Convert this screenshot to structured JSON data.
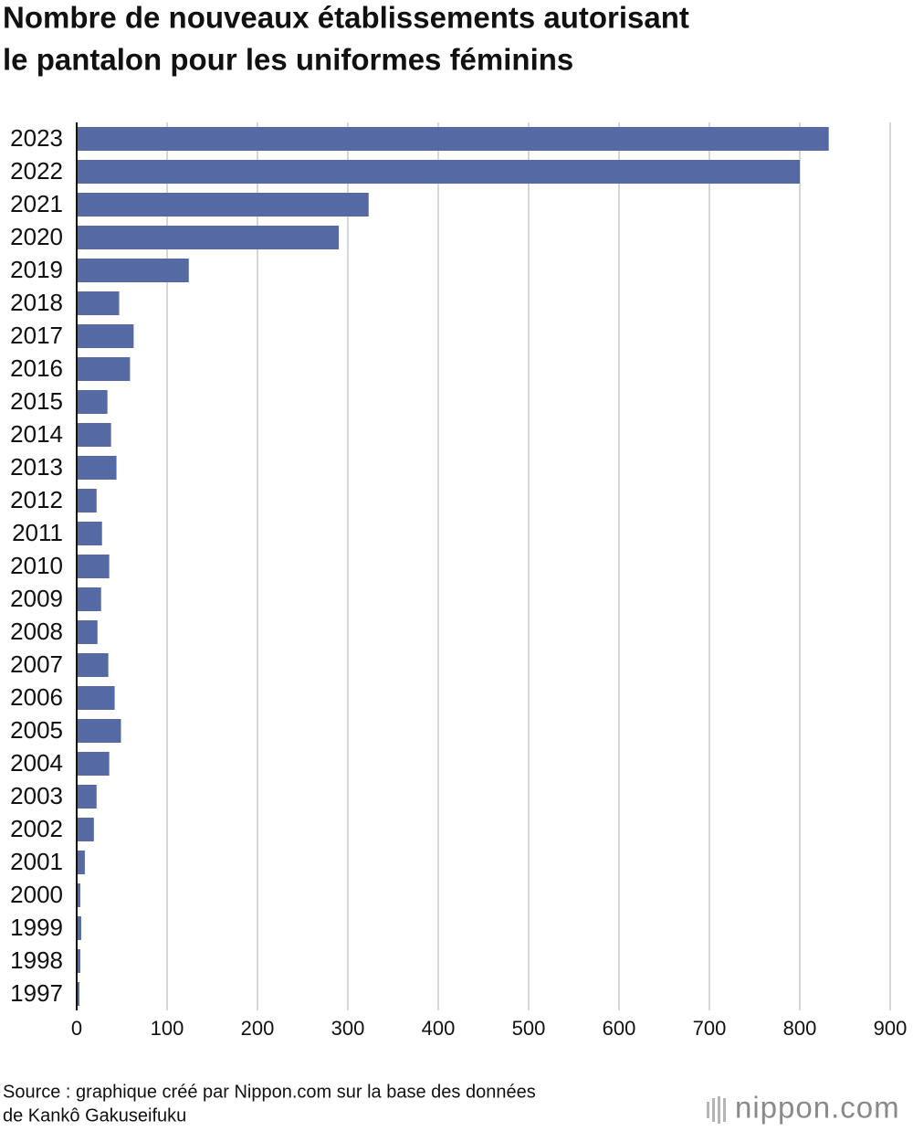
{
  "chart_data": {
    "type": "barh",
    "title": [
      "Nombre de nouveaux établissements autorisant",
      "le pantalon pour les uniformes féminins"
    ],
    "categories": [
      "2023",
      "2022",
      "2021",
      "2020",
      "2019",
      "2018",
      "2017",
      "2016",
      "2015",
      "2014",
      "2013",
      "2012",
      "2011",
      "2010",
      "2009",
      "2008",
      "2007",
      "2006",
      "2005",
      "2004",
      "2003",
      "2002",
      "2001",
      "2000",
      "1999",
      "1998",
      "1997"
    ],
    "values": [
      832,
      800,
      323,
      290,
      124,
      47,
      63,
      59,
      34,
      38,
      44,
      22,
      28,
      36,
      27,
      23,
      35,
      42,
      49,
      36,
      22,
      19,
      9,
      4,
      5,
      4,
      3
    ],
    "color": "#5569a5",
    "xlim": [
      0,
      900
    ],
    "xticks": [
      0,
      100,
      200,
      300,
      400,
      500,
      600,
      700,
      800,
      900
    ],
    "grid": true,
    "source": [
      "Source : graphique créé par Nippon.com sur la base des données",
      "de Kankô Gakuseifuku"
    ],
    "logo": "nippon.com"
  }
}
